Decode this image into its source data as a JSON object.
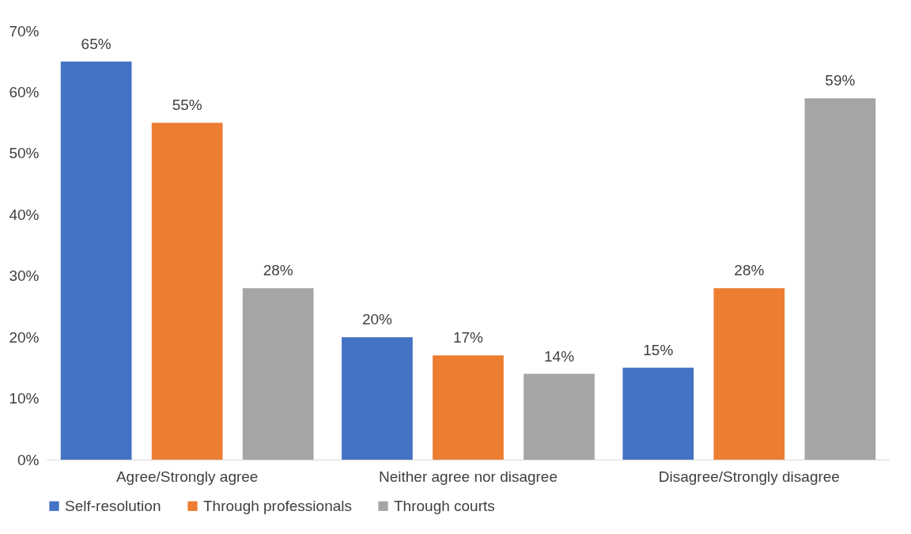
{
  "chart_data": {
    "type": "bar",
    "categories": [
      "Agree/Strongly agree",
      "Neither agree nor disagree",
      "Disagree/Strongly disagree"
    ],
    "series": [
      {
        "name": "Self-resolution",
        "color": "#4472c4",
        "values": [
          65,
          20,
          15
        ],
        "value_labels": [
          "65%",
          "20%",
          "15%"
        ]
      },
      {
        "name": "Through professionals",
        "color": "#ed7d31",
        "values": [
          55,
          17,
          28
        ],
        "value_labels": [
          "55%",
          "17%",
          "28%"
        ]
      },
      {
        "name": "Through courts",
        "color": "#a5a5a5",
        "values": [
          28,
          14,
          59
        ],
        "value_labels": [
          "28%",
          "14%",
          "59%"
        ]
      }
    ],
    "ylim": [
      0,
      70
    ],
    "yticks": [
      {
        "value": 0,
        "label": "0%"
      },
      {
        "value": 10,
        "label": "10%"
      },
      {
        "value": 20,
        "label": "20%"
      },
      {
        "value": 30,
        "label": "30%"
      },
      {
        "value": 40,
        "label": "40%"
      },
      {
        "value": 50,
        "label": "50%"
      },
      {
        "value": 60,
        "label": "60%"
      },
      {
        "value": 70,
        "label": "70%"
      }
    ],
    "grid": false,
    "legend": "bottom"
  }
}
